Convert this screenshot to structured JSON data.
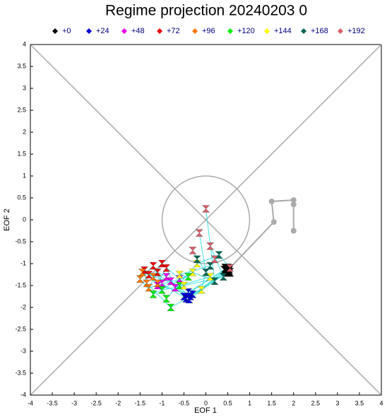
{
  "chart_data": {
    "type": "scatter",
    "title": "Regime projection 20240203 0",
    "xlabel": "EOF 1",
    "ylabel": "EOF 2",
    "xlim": [
      -4,
      4
    ],
    "ylim": [
      -4,
      4
    ],
    "xticks": [
      -4,
      -3.5,
      -3,
      -2.5,
      -2,
      -1.5,
      -1,
      -0.5,
      0,
      0.5,
      1,
      1.5,
      2,
      2.5,
      3,
      3.5,
      4
    ],
    "yticks": [
      -4,
      -3.5,
      -3,
      -2.5,
      -2,
      -1.5,
      -1,
      -0.5,
      0,
      0.5,
      1,
      1.5,
      2,
      2.5,
      3,
      3.5,
      4
    ],
    "series": [
      {
        "name": "+0",
        "color": "#000000",
        "x": [
          0.48,
          0.5,
          0.45,
          0.52,
          0.47,
          0.5
        ],
        "y": [
          -1.18,
          -1.12,
          -1.15,
          -1.2,
          -1.1,
          -1.16
        ]
      },
      {
        "name": "+24",
        "color": "#0000dd",
        "x": [
          -0.45,
          -0.35,
          -0.4,
          -0.3,
          -0.5,
          -0.38
        ],
        "y": [
          -1.8,
          -1.75,
          -1.65,
          -1.7,
          -1.75,
          -1.82
        ]
      },
      {
        "name": "+48",
        "color": "#ee00ee",
        "x": [
          -1.0,
          -0.8,
          -0.6,
          -1.1,
          -0.7,
          -0.9
        ],
        "y": [
          -1.45,
          -1.4,
          -1.35,
          -1.5,
          -1.55,
          -1.3
        ]
      },
      {
        "name": "+72",
        "color": "#ee0000",
        "x": [
          -1.2,
          -1.4,
          -1.0,
          -1.3,
          -0.9,
          -1.1
        ],
        "y": [
          -1.05,
          -1.15,
          -1.0,
          -1.25,
          -1.1,
          -1.2
        ]
      },
      {
        "name": "+96",
        "color": "#ff7700",
        "x": [
          -1.5,
          -1.35,
          -1.2,
          -1.45,
          -1.1,
          -1.3
        ],
        "y": [
          -1.35,
          -1.45,
          -1.3,
          -1.2,
          -1.45,
          -1.55
        ]
      },
      {
        "name": "+120",
        "color": "#00ee00",
        "x": [
          -1.2,
          -0.8,
          -1.0,
          -0.6,
          -0.9,
          -0.4
        ],
        "y": [
          -1.7,
          -2.0,
          -1.6,
          -1.5,
          -1.8,
          -1.3
        ]
      },
      {
        "name": "+144",
        "color": "#ffff00",
        "x": [
          -0.3,
          -0.1,
          -0.5,
          0.1,
          -0.2,
          -0.6
        ],
        "y": [
          -1.2,
          -1.6,
          -1.5,
          -1.3,
          -1.0,
          -1.25
        ]
      },
      {
        "name": "+168",
        "color": "#006655",
        "x": [
          0.2,
          0.0,
          0.4,
          -0.2,
          0.3,
          0.1
        ],
        "y": [
          -1.4,
          -1.2,
          -1.3,
          -0.9,
          -0.8,
          -1.05
        ]
      },
      {
        "name": "+192",
        "color": "#d9606a",
        "x": [
          0.0,
          -0.15,
          0.1,
          -0.3,
          0.55,
          0.2
        ],
        "y": [
          0.25,
          -0.3,
          -0.6,
          -0.7,
          -1.1,
          -0.9
        ]
      }
    ],
    "analysis": {
      "color": "#aaaaaa",
      "x": [
        0.5,
        1.55,
        1.5,
        2.0,
        2.0,
        2.0
      ],
      "y": [
        -1.15,
        -0.05,
        0.42,
        0.45,
        0.35,
        -0.25
      ]
    }
  }
}
